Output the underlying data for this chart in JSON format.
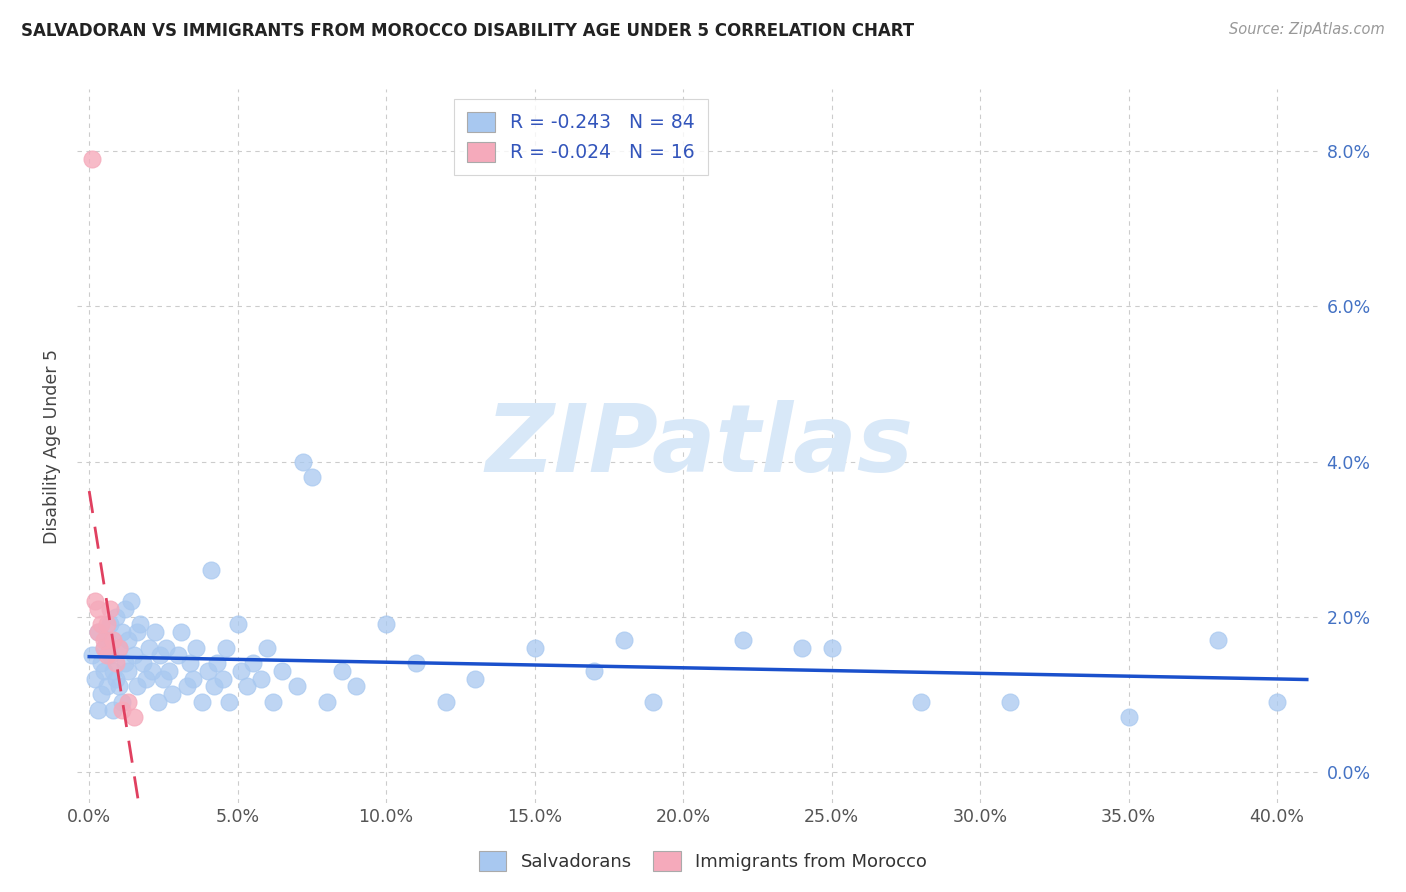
{
  "title": "SALVADORAN VS IMMIGRANTS FROM MOROCCO DISABILITY AGE UNDER 5 CORRELATION CHART",
  "source": "Source: ZipAtlas.com",
  "ylabel": "Disability Age Under 5",
  "xtick_vals": [
    0.0,
    0.05,
    0.1,
    0.15,
    0.2,
    0.25,
    0.3,
    0.35,
    0.4
  ],
  "ytick_vals": [
    0.0,
    0.02,
    0.04,
    0.06,
    0.08
  ],
  "xlim": [
    -0.004,
    0.415
  ],
  "ylim": [
    -0.004,
    0.088
  ],
  "blue_R": "-0.243",
  "blue_N": "84",
  "pink_R": "-0.024",
  "pink_N": "16",
  "blue_scatter_color": "#A8C8F0",
  "pink_scatter_color": "#F5AABB",
  "blue_line_color": "#1A50CC",
  "pink_line_color": "#E04060",
  "grid_color": "#CCCCCC",
  "bg_color": "#FFFFFF",
  "watermark_text": "ZIPatlas",
  "title_color": "#222222",
  "axis_label_color": "#444444",
  "tick_color": "#555555",
  "right_tick_color": "#4472C4",
  "legend_box_color": "#3355BB",
  "source_color": "#999999",
  "blue_x": [
    0.001,
    0.002,
    0.003,
    0.003,
    0.004,
    0.004,
    0.005,
    0.005,
    0.006,
    0.006,
    0.007,
    0.007,
    0.008,
    0.008,
    0.009,
    0.009,
    0.01,
    0.01,
    0.011,
    0.011,
    0.012,
    0.012,
    0.013,
    0.013,
    0.014,
    0.015,
    0.016,
    0.016,
    0.017,
    0.018,
    0.019,
    0.02,
    0.021,
    0.022,
    0.023,
    0.024,
    0.025,
    0.026,
    0.027,
    0.028,
    0.03,
    0.031,
    0.033,
    0.034,
    0.035,
    0.036,
    0.038,
    0.04,
    0.041,
    0.042,
    0.043,
    0.045,
    0.046,
    0.047,
    0.05,
    0.051,
    0.053,
    0.055,
    0.058,
    0.06,
    0.062,
    0.065,
    0.07,
    0.072,
    0.075,
    0.08,
    0.085,
    0.09,
    0.1,
    0.11,
    0.12,
    0.13,
    0.15,
    0.17,
    0.19,
    0.22,
    0.25,
    0.28,
    0.31,
    0.35,
    0.38,
    0.4,
    0.18,
    0.24
  ],
  "blue_y": [
    0.015,
    0.012,
    0.018,
    0.008,
    0.014,
    0.01,
    0.016,
    0.013,
    0.017,
    0.011,
    0.019,
    0.015,
    0.013,
    0.008,
    0.02,
    0.012,
    0.016,
    0.011,
    0.018,
    0.009,
    0.014,
    0.021,
    0.017,
    0.013,
    0.022,
    0.015,
    0.018,
    0.011,
    0.019,
    0.014,
    0.012,
    0.016,
    0.013,
    0.018,
    0.009,
    0.015,
    0.012,
    0.016,
    0.013,
    0.01,
    0.015,
    0.018,
    0.011,
    0.014,
    0.012,
    0.016,
    0.009,
    0.013,
    0.026,
    0.011,
    0.014,
    0.012,
    0.016,
    0.009,
    0.019,
    0.013,
    0.011,
    0.014,
    0.012,
    0.016,
    0.009,
    0.013,
    0.011,
    0.04,
    0.038,
    0.009,
    0.013,
    0.011,
    0.019,
    0.014,
    0.009,
    0.012,
    0.016,
    0.013,
    0.009,
    0.017,
    0.016,
    0.009,
    0.009,
    0.007,
    0.017,
    0.009,
    0.017,
    0.016
  ],
  "pink_x": [
    0.001,
    0.002,
    0.003,
    0.003,
    0.004,
    0.005,
    0.005,
    0.006,
    0.006,
    0.007,
    0.008,
    0.009,
    0.01,
    0.011,
    0.013,
    0.015
  ],
  "pink_y": [
    0.079,
    0.022,
    0.021,
    0.018,
    0.019,
    0.017,
    0.016,
    0.019,
    0.015,
    0.021,
    0.017,
    0.014,
    0.016,
    0.008,
    0.009,
    0.007
  ]
}
